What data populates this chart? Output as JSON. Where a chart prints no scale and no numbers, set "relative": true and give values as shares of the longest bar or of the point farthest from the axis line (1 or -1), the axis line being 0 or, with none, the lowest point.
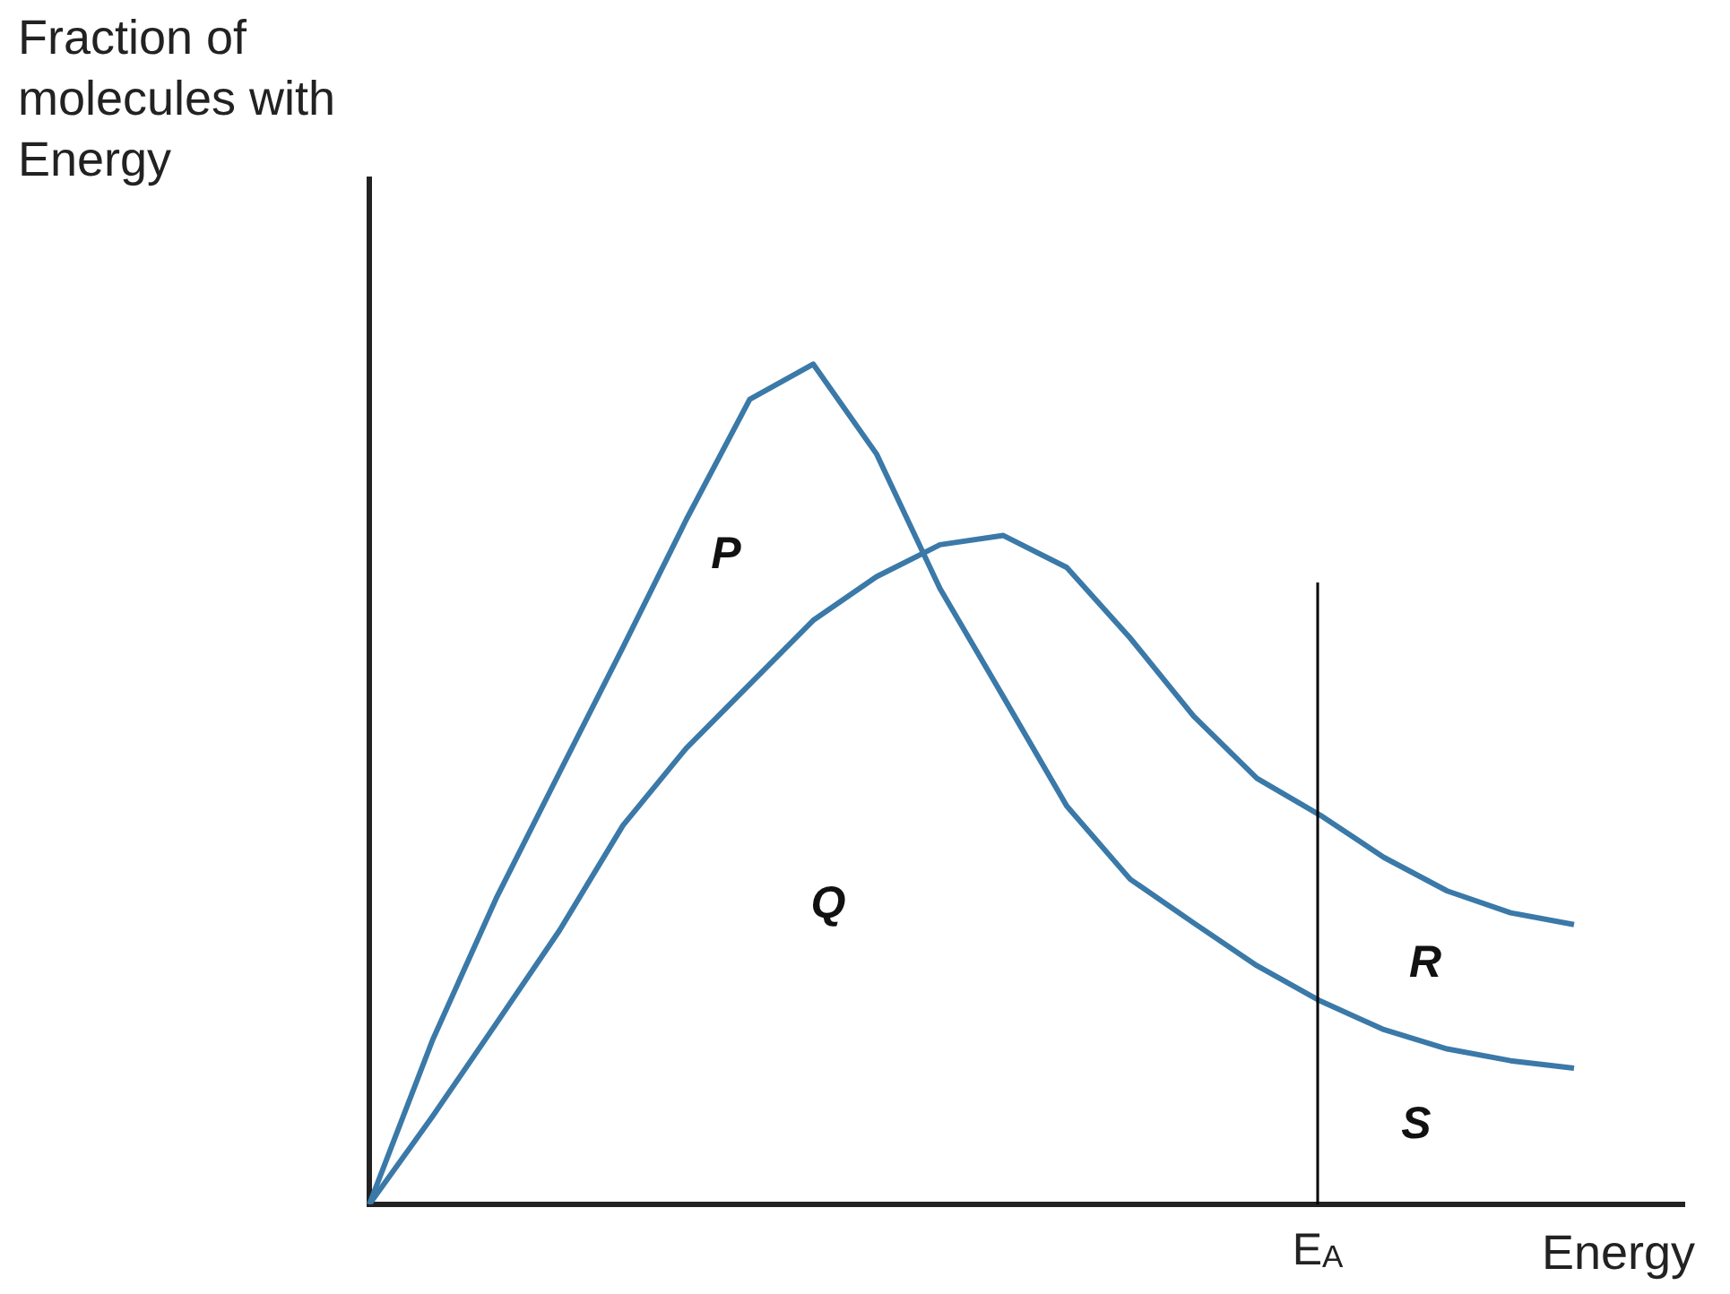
{
  "chart_data": {
    "type": "line",
    "relative": true,
    "xlabel": "Energy",
    "ylabel": "Fraction of molecules with Energy",
    "legend": false,
    "marker": "none",
    "line_style": "solid",
    "categories": [
      null,
      null,
      null,
      null,
      null,
      null,
      null,
      null,
      null,
      null,
      null,
      null,
      null,
      null,
      null,
      null,
      null,
      null,
      null,
      null
    ],
    "series": [
      {
        "color": "#3a79a8",
        "values": [
          0,
          0.196,
          0.364,
          0.514,
          0.663,
          0.815,
          0.958,
          1,
          0.893,
          0.733,
          0.604,
          0.474,
          0.387,
          0.335,
          0.284,
          0.242,
          0.208,
          0.185,
          0.171,
          0.162
        ]
      },
      {
        "color": "#3a79a8",
        "values": [
          0,
          0.105,
          0.215,
          0.326,
          0.451,
          0.543,
          0.619,
          0.695,
          0.747,
          0.785,
          0.796,
          0.758,
          0.674,
          0.581,
          0.507,
          0.463,
          0.413,
          0.373,
          0.347,
          0.333
        ]
      }
    ],
    "annotations": [
      "P",
      "Q",
      "R",
      "S",
      "E$_{A}$"
    ]
  }
}
